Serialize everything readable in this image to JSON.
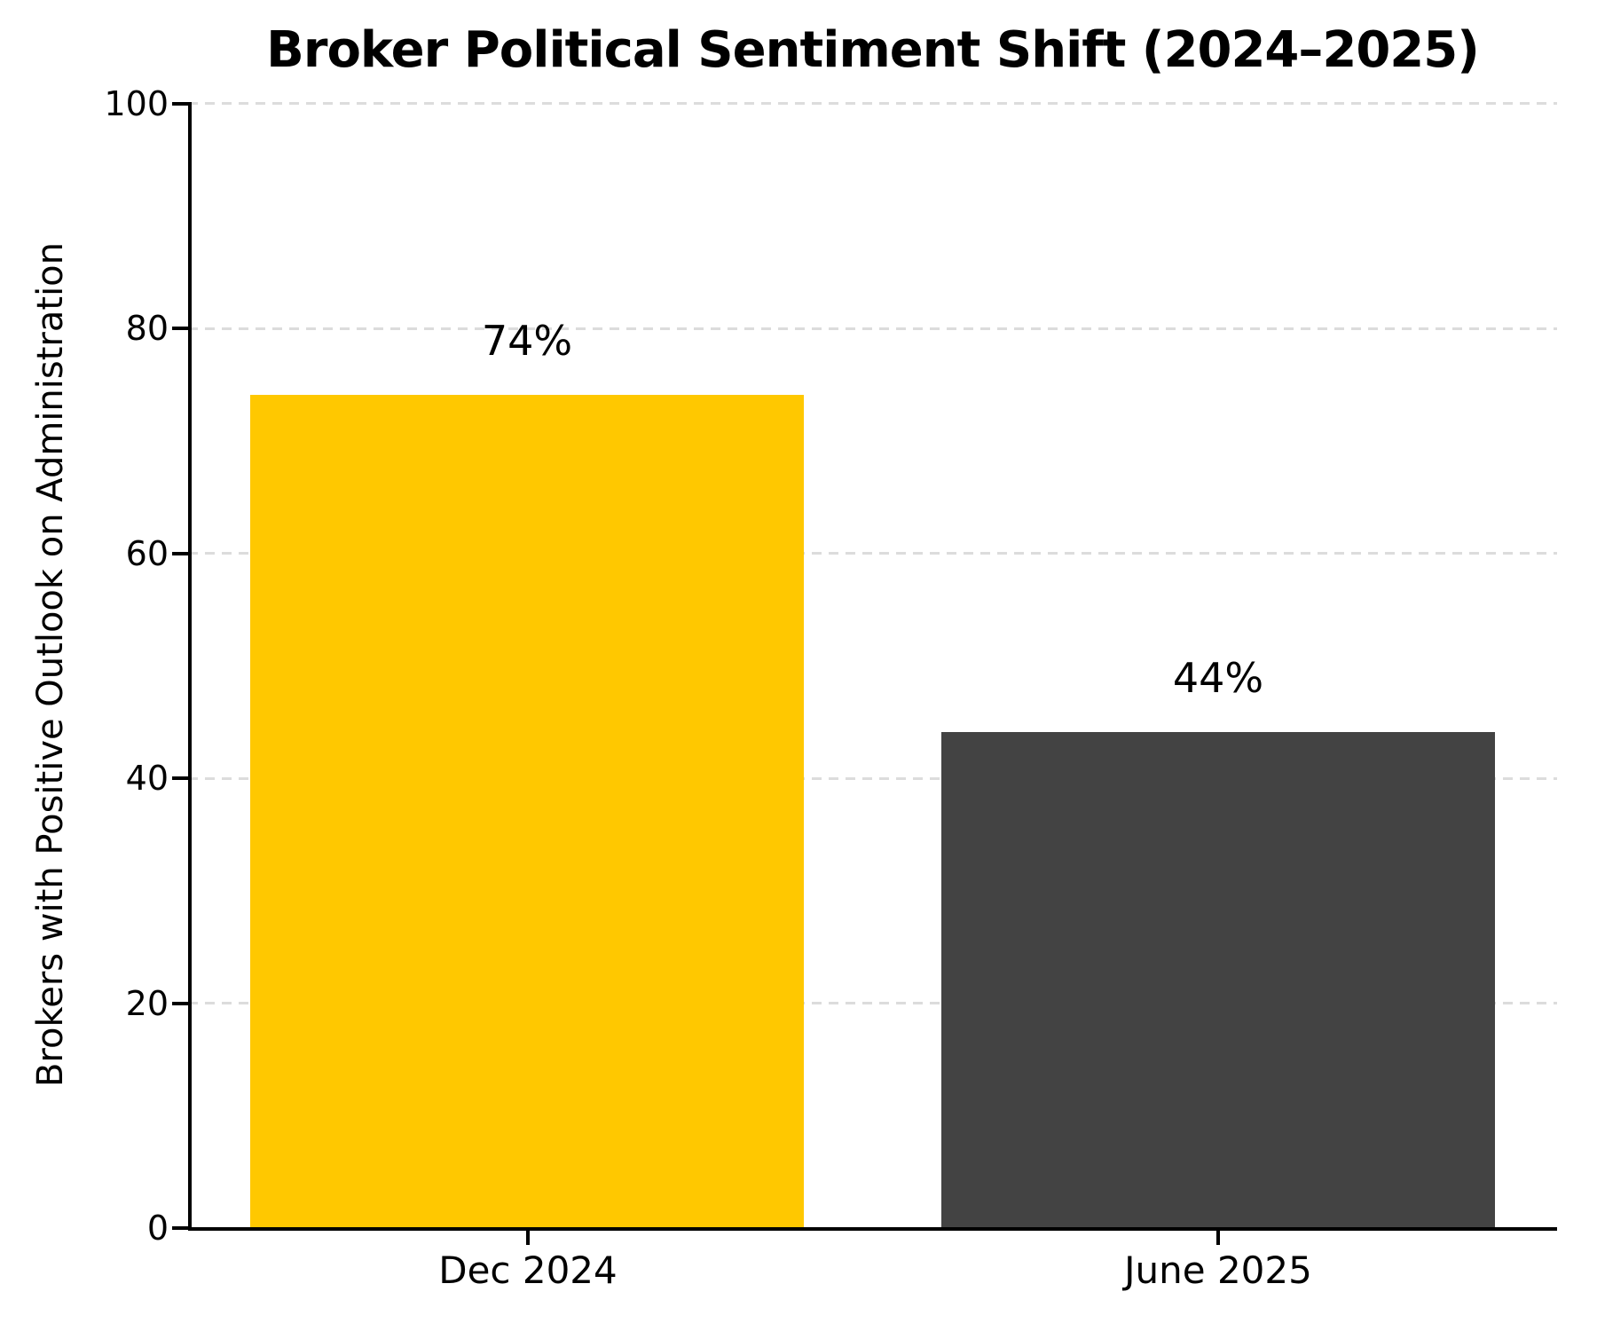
{
  "chart_data": {
    "type": "bar",
    "title": "Broker Political Sentiment Shift (2024–2025)",
    "xlabel": "",
    "ylabel": "Brokers with Positive Outlook on Administration",
    "categories": [
      "Dec 2024",
      "June 2025"
    ],
    "values": [
      74,
      44
    ],
    "value_labels": [
      "74%",
      "44%"
    ],
    "bar_colors": [
      "#FFC800",
      "#434343"
    ],
    "ylim": [
      0,
      100
    ],
    "yticks": [
      "0",
      "20",
      "40",
      "60",
      "80",
      "100"
    ],
    "grid": "horizontal dashed gridlines at 20/40/60/80/100",
    "gridline_color": "#dcdcdc",
    "axis_color": "#000000",
    "background_color": "#ffffff",
    "legend": "none"
  }
}
